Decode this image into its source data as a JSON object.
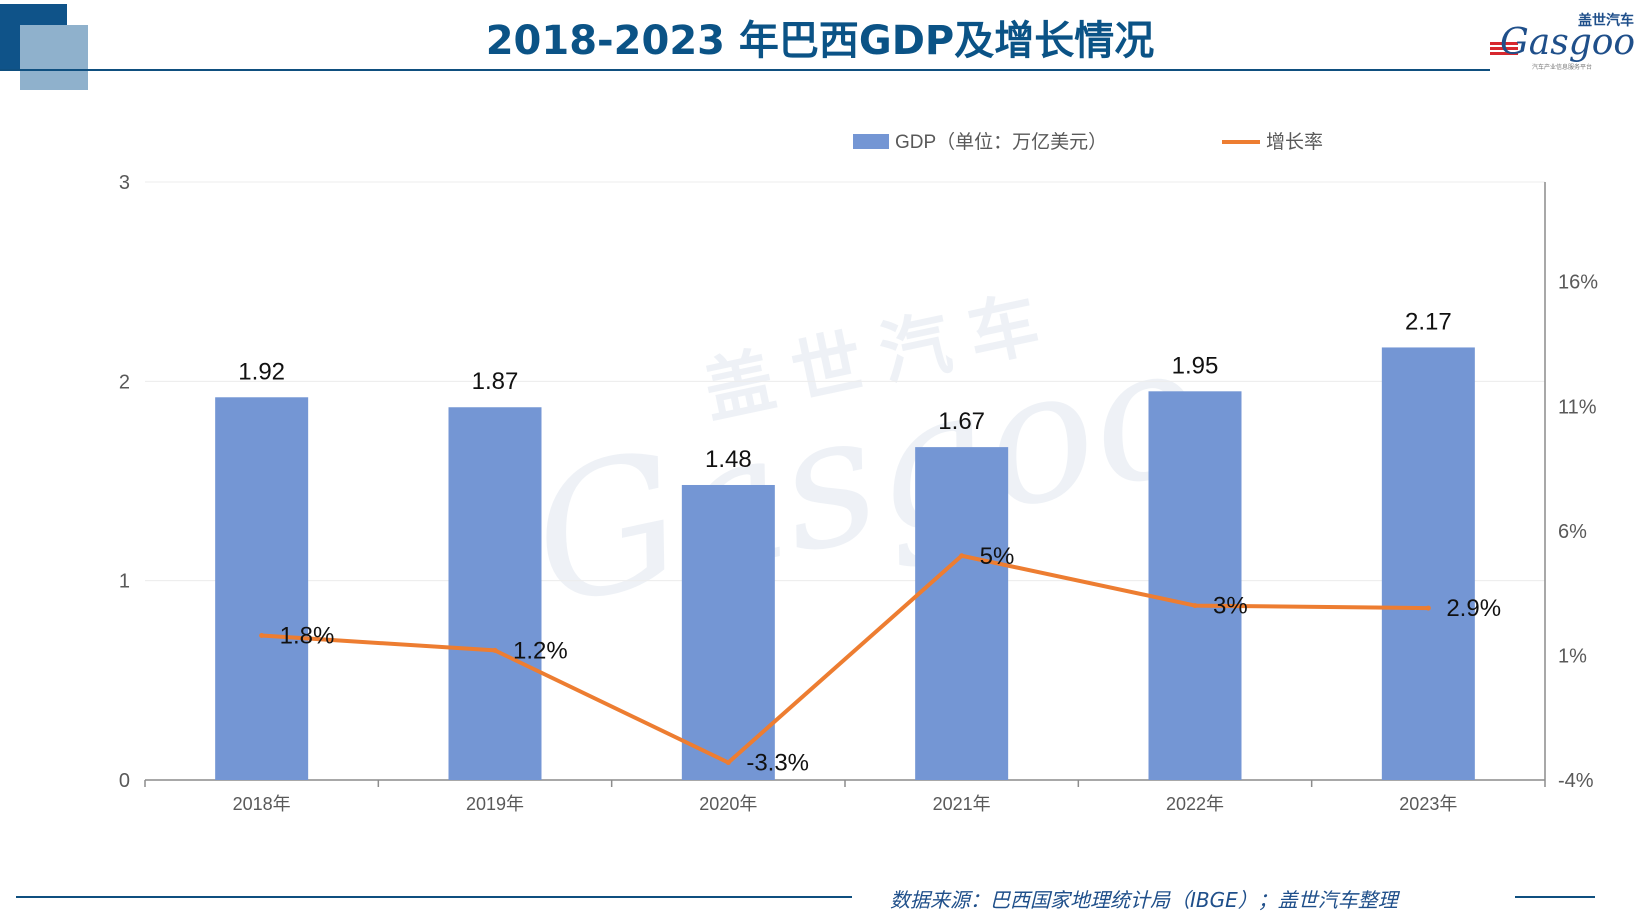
{
  "header": {
    "title": "2018-2023 年巴西GDP及增长情况"
  },
  "logo": {
    "cn": "盖世汽车",
    "en": "Gasgoo",
    "tagline": "汽车产业信息服务平台"
  },
  "watermark": {
    "cn": "盖世汽车",
    "en": "Gasgoo"
  },
  "footer": {
    "source": "数据来源：巴西国家地理统计局（IBGE）；盖世汽车整理"
  },
  "colors": {
    "bar": "#7496d4",
    "line": "#ed7d31",
    "title": "#0b5386",
    "axis": "#595959"
  },
  "chart_data": {
    "type": "bar",
    "title": "2018-2023 年巴西GDP及增长情况",
    "categories": [
      "2018年",
      "2019年",
      "2020年",
      "2021年",
      "2022年",
      "2023年"
    ],
    "series": [
      {
        "name": "GDP（单位：万亿美元）",
        "type": "bar",
        "axis": "left",
        "values": [
          1.92,
          1.87,
          1.48,
          1.67,
          1.95,
          2.17
        ],
        "labels": [
          "1.92",
          "1.87",
          "1.48",
          "1.67",
          "1.95",
          "2.17"
        ]
      },
      {
        "name": "增长率",
        "type": "line",
        "axis": "right",
        "values": [
          1.8,
          1.2,
          -3.3,
          5,
          3,
          2.9
        ],
        "labels": [
          "1.8%",
          "1.2%",
          "-3.3%",
          "5%",
          "3%",
          "2.9%"
        ]
      }
    ],
    "y_left": {
      "min": 0,
      "max": 3,
      "ticks": [
        "0",
        "1",
        "2",
        "3"
      ],
      "tick_values": [
        0,
        1,
        2,
        3
      ]
    },
    "y_right": {
      "min": -4,
      "max": 20,
      "ticks": [
        "-4%",
        "1%",
        "6%",
        "11%",
        "16%"
      ],
      "tick_values": [
        -4,
        1,
        6,
        11,
        16
      ]
    },
    "grid": true,
    "legend": "top"
  }
}
